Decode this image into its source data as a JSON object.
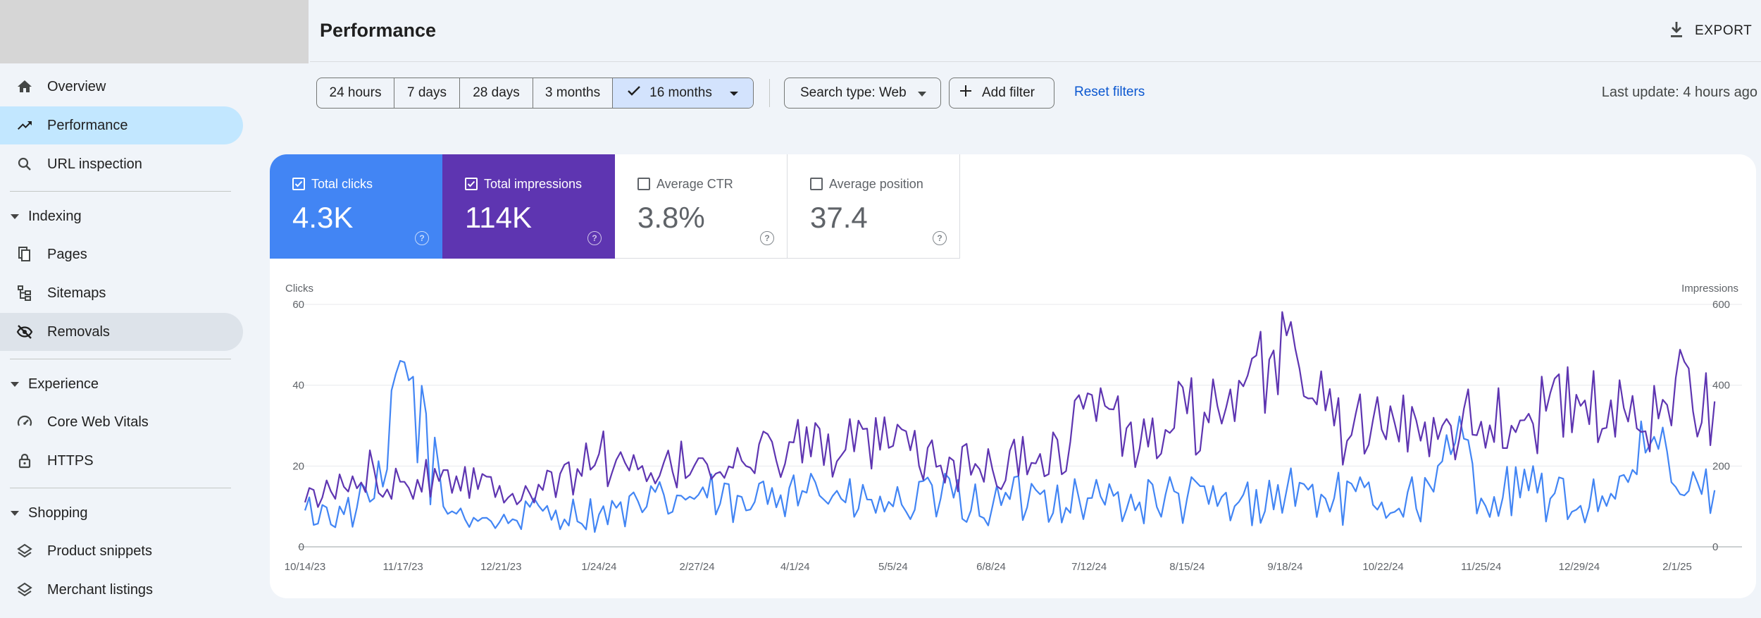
{
  "sidebar": {
    "items": [
      {
        "label": "Overview",
        "icon": "home-icon"
      },
      {
        "label": "Performance",
        "icon": "trending-up-icon"
      },
      {
        "label": "URL inspection",
        "icon": "search-icon"
      },
      {
        "label": "Pages",
        "icon": "pages-icon"
      },
      {
        "label": "Sitemaps",
        "icon": "sitemap-icon"
      },
      {
        "label": "Removals",
        "icon": "eye-off-icon"
      },
      {
        "label": "Core Web Vitals",
        "icon": "gauge-icon"
      },
      {
        "label": "HTTPS",
        "icon": "lock-icon"
      },
      {
        "label": "Product snippets",
        "icon": "layers-icon"
      },
      {
        "label": "Merchant listings",
        "icon": "layers-icon"
      }
    ],
    "sections": [
      "Indexing",
      "Experience",
      "Shopping"
    ]
  },
  "header": {
    "title": "Performance",
    "export_label": "EXPORT"
  },
  "filters": {
    "ranges": [
      "24 hours",
      "7 days",
      "28 days",
      "3 months",
      "16 months"
    ],
    "selected_range": "16 months",
    "search_type": "Search type: Web",
    "add_filter": "Add filter",
    "reset": "Reset filters",
    "last_update": "Last update: 4 hours ago"
  },
  "metrics": [
    {
      "label": "Total clicks",
      "value": "4.3K",
      "checked": true,
      "color": "#4285f4"
    },
    {
      "label": "Total impressions",
      "value": "114K",
      "checked": true,
      "color": "#5e35b1"
    },
    {
      "label": "Average CTR",
      "value": "3.8%",
      "checked": false
    },
    {
      "label": "Average position",
      "value": "37.4",
      "checked": false
    }
  ],
  "chart_data": {
    "type": "line",
    "ylabel_left": "Clicks",
    "ylabel_right": "Impressions",
    "ylim_left": [
      0,
      60
    ],
    "ylim_right": [
      0,
      600
    ],
    "yticks_left": [
      "0",
      "20",
      "40",
      "60"
    ],
    "yticks_right": [
      "0",
      "200",
      "400",
      "600"
    ],
    "x_ticks": [
      "10/14/23",
      "11/17/23",
      "12/21/23",
      "1/24/24",
      "2/27/24",
      "4/1/24",
      "5/5/24",
      "6/8/24",
      "7/12/24",
      "8/15/24",
      "9/18/24",
      "10/22/24",
      "11/25/24",
      "12/29/24",
      "2/1/25"
    ],
    "grid": true,
    "series": [
      {
        "name": "Total clicks",
        "axis": "left",
        "color": "#4285f4",
        "x": [
          "10/14/23",
          "10/28/23",
          "11/7/23",
          "11/12/23",
          "11/17/23",
          "12/1/23",
          "12/21/23",
          "1/5/24",
          "1/24/24",
          "2/10/24",
          "2/27/24",
          "3/15/24",
          "4/1/24",
          "4/18/24",
          "5/5/24",
          "5/22/24",
          "6/8/24",
          "6/25/24",
          "7/12/24",
          "7/29/24",
          "8/15/24",
          "9/1/24",
          "9/18/24",
          "10/5/24",
          "10/22/24",
          "11/8/24",
          "11/20/24",
          "11/25/24",
          "12/12/24",
          "12/29/24",
          "1/15/25",
          "1/25/25",
          "2/1/25",
          "2/14/25"
        ],
        "values": [
          9,
          8,
          12,
          20,
          47,
          10,
          6,
          9,
          8,
          10,
          13,
          9,
          18,
          11,
          10,
          12,
          10,
          13,
          12,
          11,
          12,
          10,
          14,
          12,
          11,
          13,
          28,
          12,
          14,
          10,
          16,
          25,
          14,
          14
        ]
      },
      {
        "name": "Total impressions",
        "axis": "right",
        "color": "#5e35b1",
        "x": [
          "10/14/23",
          "10/28/23",
          "11/7/23",
          "11/17/23",
          "12/1/23",
          "12/21/23",
          "1/5/24",
          "1/24/24",
          "2/10/24",
          "2/27/24",
          "3/15/24",
          "4/1/24",
          "4/18/24",
          "5/5/24",
          "5/22/24",
          "6/8/24",
          "6/25/24",
          "7/5/24",
          "7/12/24",
          "7/29/24",
          "8/15/24",
          "9/1/24",
          "9/18/24",
          "10/5/24",
          "10/22/24",
          "11/8/24",
          "11/25/24",
          "12/12/24",
          "12/29/24",
          "1/15/25",
          "1/28/25",
          "2/1/25",
          "2/14/25"
        ],
        "values": [
          110,
          150,
          190,
          160,
          190,
          150,
          140,
          230,
          160,
          220,
          200,
          260,
          240,
          250,
          200,
          190,
          230,
          250,
          390,
          240,
          330,
          310,
          530,
          300,
          290,
          320,
          310,
          330,
          350,
          310,
          340,
          430,
          360
        ]
      }
    ]
  }
}
